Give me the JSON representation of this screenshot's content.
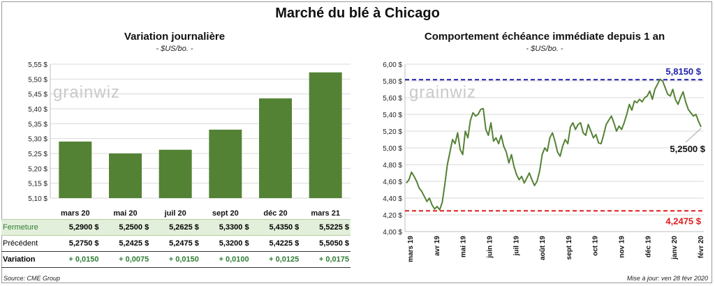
{
  "main_title": "Marché du blé à Chicago",
  "left": {
    "title": "Variation journalière",
    "unit": "- $US/bo. -"
  },
  "right": {
    "title": "Comportement échéance immédiate depuis 1 an",
    "unit": "- $US/bo. -"
  },
  "watermark": "grainwiz",
  "table": {
    "rows": [
      {
        "label": "Fermeture",
        "values": [
          "5,2900  $",
          "5,2500  $",
          "5,2625  $",
          "5,3300  $",
          "5,4350  $",
          "5,5225  $"
        ]
      },
      {
        "label": "Précédent",
        "values": [
          "5,2750  $",
          "5,2425  $",
          "5,2475  $",
          "5,3200  $",
          "5,4225  $",
          "5,5050  $"
        ]
      },
      {
        "label": "Variation",
        "values": [
          "+ 0,0150",
          "+ 0,0075",
          "+ 0,0150",
          "+ 0,0100",
          "+ 0,0125",
          "+ 0,0175"
        ]
      }
    ]
  },
  "source": "Source: CME Group",
  "updated": "Mise à jour: ven 28 févr 2020",
  "chart_data": [
    {
      "type": "bar",
      "categories": [
        "mars 20",
        "mai 20",
        "juil 20",
        "sept 20",
        "déc 20",
        "mars 21"
      ],
      "values": [
        5.29,
        5.25,
        5.2625,
        5.33,
        5.435,
        5.5225
      ],
      "ylim": [
        5.1,
        5.55
      ],
      "yticks": [
        "5,10 $",
        "5,15 $",
        "5,20 $",
        "5,25 $",
        "5,30 $",
        "5,35 $",
        "5,40 $",
        "5,45 $",
        "5,50 $",
        "5,55 $"
      ],
      "color": "#548235",
      "grid": true
    },
    {
      "type": "line",
      "x_labels": [
        "mars 19",
        "avr 19",
        "mai 19",
        "juin 19",
        "juil 19",
        "août 19",
        "sept 19",
        "oct 19",
        "nov 19",
        "déc 19",
        "janv 20",
        "févr 20"
      ],
      "ylim": [
        4.0,
        6.0
      ],
      "yticks": [
        "4,00 $",
        "4,20 $",
        "4,40 $",
        "4,60 $",
        "4,80 $",
        "5,00 $",
        "5,20 $",
        "5,40 $",
        "5,60 $",
        "5,80 $",
        "6,00 $"
      ],
      "color": "#548235",
      "high": {
        "value": 5.815,
        "label": "5,8150 $",
        "color": "#1f1fa8"
      },
      "low": {
        "value": 4.2475,
        "label": "4,2475 $",
        "color": "#e01b1b"
      },
      "last": {
        "value": 5.25,
        "label": "5,2500 $"
      },
      "values": [
        4.58,
        4.62,
        4.71,
        4.66,
        4.6,
        4.52,
        4.48,
        4.42,
        4.36,
        4.4,
        4.32,
        4.27,
        4.3,
        4.26,
        4.35,
        4.56,
        4.8,
        4.95,
        5.1,
        5.05,
        5.18,
        4.98,
        4.92,
        5.2,
        5.12,
        5.33,
        5.42,
        5.38,
        5.4,
        5.46,
        5.47,
        5.22,
        5.15,
        5.3,
        5.08,
        5.12,
        5.05,
        5.15,
        5.02,
        4.95,
        4.82,
        4.92,
        4.78,
        4.68,
        4.62,
        4.66,
        4.58,
        4.64,
        4.7,
        4.62,
        4.55,
        4.6,
        4.72,
        4.92,
        5.0,
        4.96,
        5.12,
        5.18,
        5.08,
        4.95,
        4.9,
        5.02,
        5.1,
        5.05,
        5.25,
        5.3,
        5.22,
        5.28,
        5.3,
        5.18,
        5.15,
        5.28,
        5.2,
        5.12,
        5.16,
        5.06,
        5.05,
        5.16,
        5.28,
        5.33,
        5.38,
        5.3,
        5.2,
        5.26,
        5.22,
        5.3,
        5.4,
        5.52,
        5.45,
        5.56,
        5.54,
        5.58,
        5.55,
        5.6,
        5.62,
        5.68,
        5.58,
        5.7,
        5.76,
        5.82,
        5.8,
        5.72,
        5.64,
        5.62,
        5.7,
        5.58,
        5.52,
        5.6,
        5.67,
        5.55,
        5.46,
        5.42,
        5.38,
        5.4,
        5.32,
        5.25
      ]
    }
  ]
}
